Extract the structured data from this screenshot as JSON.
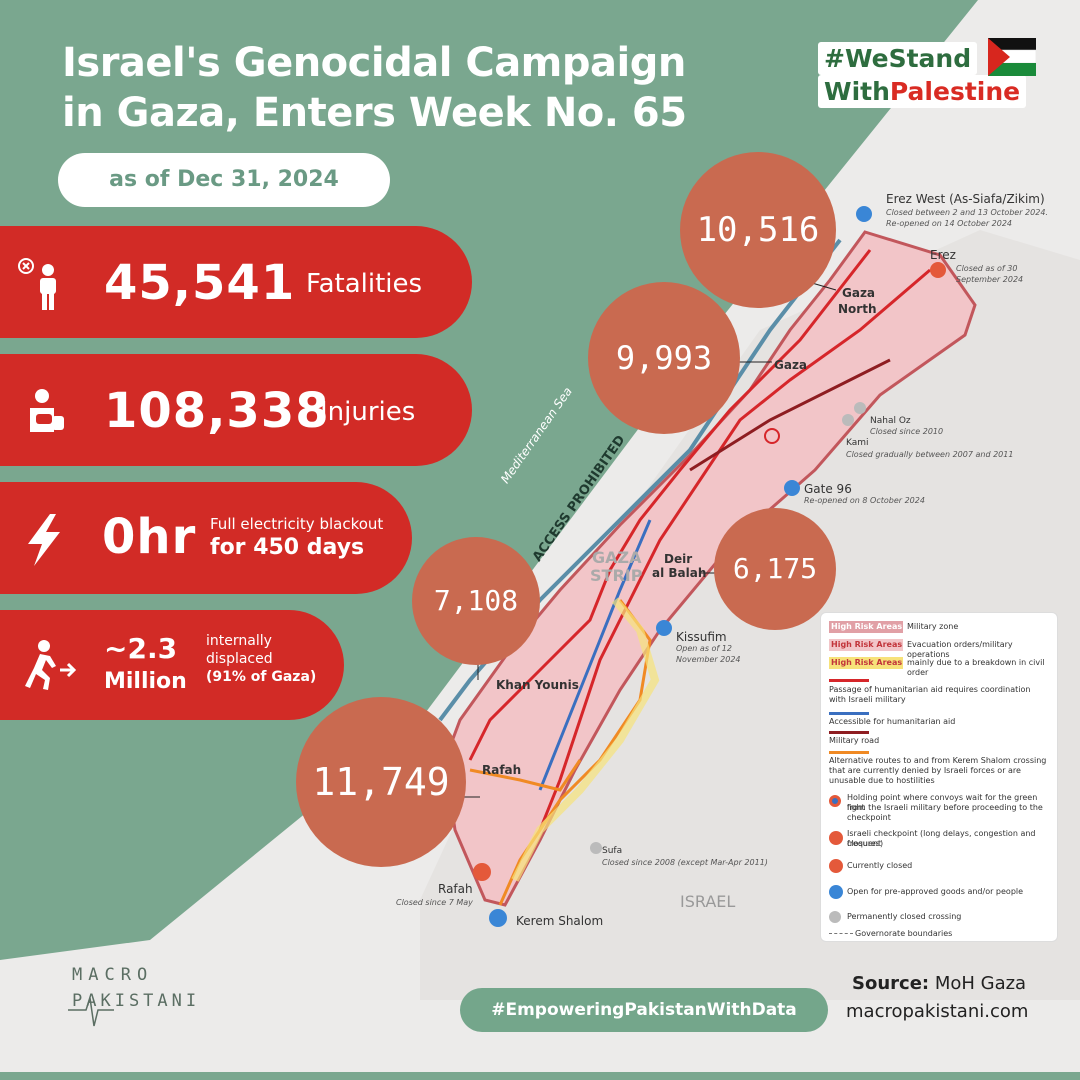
{
  "header": {
    "title_line1": "Israel's Genocidal Campaign",
    "title_line2": "in Gaza, Enters Week No. 65",
    "hashtag_line1": "#WeStand",
    "hashtag_line2a": "With",
    "hashtag_line2b": "Palestine",
    "date": "as of Dec 31, 2024"
  },
  "stats": {
    "fatalities_value": "45,541",
    "fatalities_label": "Fatalities",
    "injuries_value": "108,338",
    "injuries_label": "Injuries",
    "electricity_value": "0hr",
    "electricity_label1": "Full electricity blackout",
    "electricity_label2": "for 450 days",
    "displaced_value1": "~2.3",
    "displaced_value2": "Million",
    "displaced_label1": "internally",
    "displaced_label2": "displaced",
    "displaced_label3": "(91% of Gaza)"
  },
  "bubbles": {
    "north": "10,516",
    "gaza": "9,993",
    "deir": "6,175",
    "khan": "7,108",
    "rafah": "11,749"
  },
  "map": {
    "gaza_north": "Gaza\nNorth",
    "gaza_north_1": "Gaza",
    "gaza_north_2": "North",
    "gaza": "Gaza",
    "deir_1": "Deir",
    "deir_2": "al Balah",
    "khan": "Khan Younis",
    "rafah_city": "Rafah",
    "gaza_strip_1": "GAZA",
    "gaza_strip_2": "STRIP",
    "sea": "Mediterranean Sea",
    "access": "ACCESS PROHIBITED",
    "israel": "ISRAEL",
    "erez_west": "Erez West (As-Siafa/Zikim)",
    "erez_west_note1": "Closed between 2 and 13 October 2024.",
    "erez_west_note2": "Re-opened on 14 October 2024",
    "erez": "Erez",
    "erez_note1": "Closed as of 30",
    "erez_note2": "September 2024",
    "nahal_oz": "Nahal Oz",
    "nahal_oz_note": "Closed since 2010",
    "kami": "Kami",
    "kami_note": "Closed gradually between 2007 and 2011",
    "gate96": "Gate 96",
    "gate96_note": "Re-opened on 8 October 2024",
    "kissufim": "Kissufim",
    "kissufim_note1": "Open as of 12",
    "kissufim_note2": "November 2024",
    "sufa": "Sufa",
    "sufa_note": "Closed since  2008 (except Mar-Apr 2011)",
    "rafah_crossing": "Rafah",
    "rafah_note": "Closed since 7 May",
    "kerem": "Kerem Shalom",
    "rashed": "Rashed\ncheckpoint",
    "salah_cp": "Salah Ad Din\ncheckpoint"
  },
  "legend": {
    "high_risk": "High Risk Areas",
    "military_zone": "Military zone",
    "evac": "Evacuation orders/military operations",
    "civil": "mainly due to a breakdown in civil order",
    "red_line_1": "Passage of humanitarian aid requires coordination",
    "red_line_2": "with Israeli military",
    "blue_line": "Accessible for humanitarian aid",
    "military_road": "Military road",
    "alt_1": "Alternative routes to and from Kerem Shalom crossing",
    "alt_2": "that are currently denied by Israeli forces or are",
    "alt_3": "unusable due to hostilities",
    "hold_1": "Holding point where convoys wait for the green light",
    "hold_2": "from the Israeli military before proceeding to the",
    "hold_3": "checkpoint",
    "checkpoint_1": "Israeli checkpoint (long delays, congestion and frequent",
    "checkpoint_2": "closures)",
    "closed": "Currently closed",
    "open": "Open for pre-approved goods and/or people",
    "perm": "Permanently closed crossing",
    "gov": "Governorate boundaries"
  },
  "footer": {
    "hashtag": "#EmpoweringPakistanWithData",
    "source_label": "Source:",
    "source_value": " MoH Gaza",
    "site": "macropakistani.com",
    "logo_1": "MACRO",
    "logo_2": "PAKISTANI"
  },
  "colors": {
    "green": "#74a68b",
    "red": "#d22b26",
    "bubble": "#c96a50"
  }
}
